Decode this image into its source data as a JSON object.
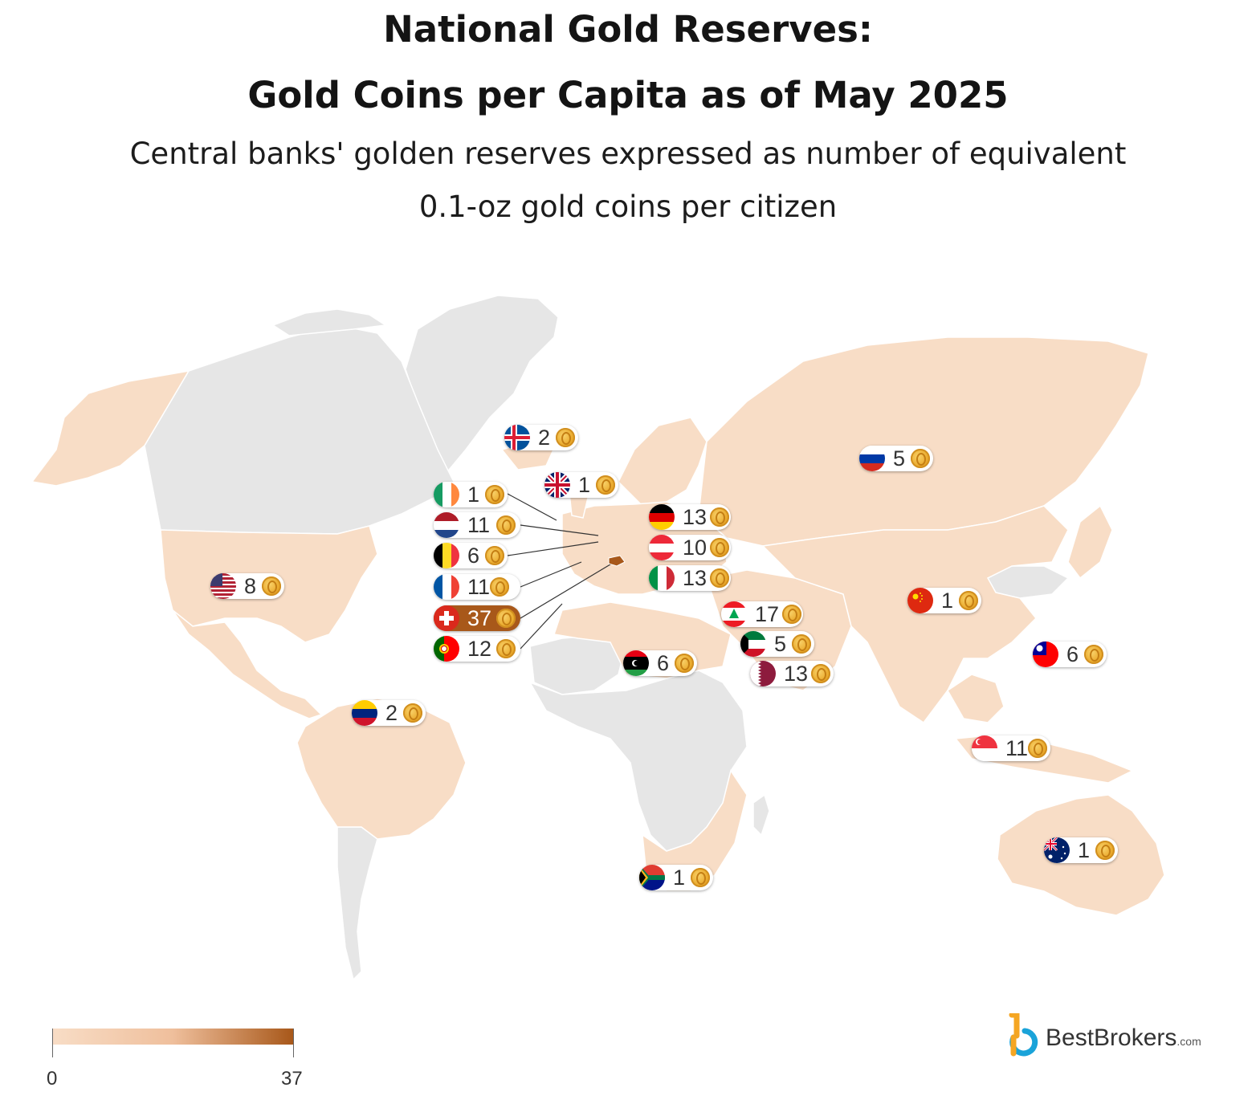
{
  "title_line1": "National Gold Reserves:",
  "title_line2": "Gold Coins per Capita as of May 2025",
  "subtitle_line1": "Central banks' golden reserves expressed as number of equivalent",
  "subtitle_line2": "0.1-oz gold coins per citizen",
  "legend": {
    "min_label": "0",
    "max_label": "37",
    "min": 0,
    "max": 37,
    "color_low": "#f8ddc6",
    "color_high": "#a8581a"
  },
  "colors": {
    "no_data": "#e6e6e6",
    "data_fill": "#f8ddc6",
    "highlight": "#a8581a",
    "coin": "#e9a82a"
  },
  "brand": {
    "name": "BestBrokers",
    "suffix": ".com"
  },
  "countries": [
    {
      "id": "iceland",
      "value": "2",
      "flag": "iceland"
    },
    {
      "id": "uk",
      "value": "1",
      "flag": "uk"
    },
    {
      "id": "russia",
      "value": "5",
      "flag": "russia"
    },
    {
      "id": "ireland",
      "value": "1",
      "flag": "ireland"
    },
    {
      "id": "netherlands",
      "value": "11",
      "flag": "netherlands"
    },
    {
      "id": "belgium",
      "value": "6",
      "flag": "belgium"
    },
    {
      "id": "france",
      "value": "11",
      "flag": "france"
    },
    {
      "id": "switzerland",
      "value": "37",
      "flag": "switzerland",
      "highlight": true
    },
    {
      "id": "portugal",
      "value": "12",
      "flag": "portugal"
    },
    {
      "id": "germany",
      "value": "13",
      "flag": "germany"
    },
    {
      "id": "austria",
      "value": "10",
      "flag": "austria"
    },
    {
      "id": "italy",
      "value": "13",
      "flag": "italy"
    },
    {
      "id": "usa",
      "value": "8",
      "flag": "usa"
    },
    {
      "id": "lebanon",
      "value": "17",
      "flag": "lebanon"
    },
    {
      "id": "kuwait",
      "value": "5",
      "flag": "kuwait"
    },
    {
      "id": "qatar",
      "value": "13",
      "flag": "qatar"
    },
    {
      "id": "libya",
      "value": "6",
      "flag": "libya"
    },
    {
      "id": "china",
      "value": "1",
      "flag": "china"
    },
    {
      "id": "taiwan",
      "value": "6",
      "flag": "taiwan"
    },
    {
      "id": "venezuela",
      "value": "2",
      "flag": "venezuela"
    },
    {
      "id": "singapore",
      "value": "11",
      "flag": "singapore"
    },
    {
      "id": "australia",
      "value": "1",
      "flag": "australia"
    },
    {
      "id": "south-africa",
      "value": "1",
      "flag": "south-africa"
    }
  ]
}
